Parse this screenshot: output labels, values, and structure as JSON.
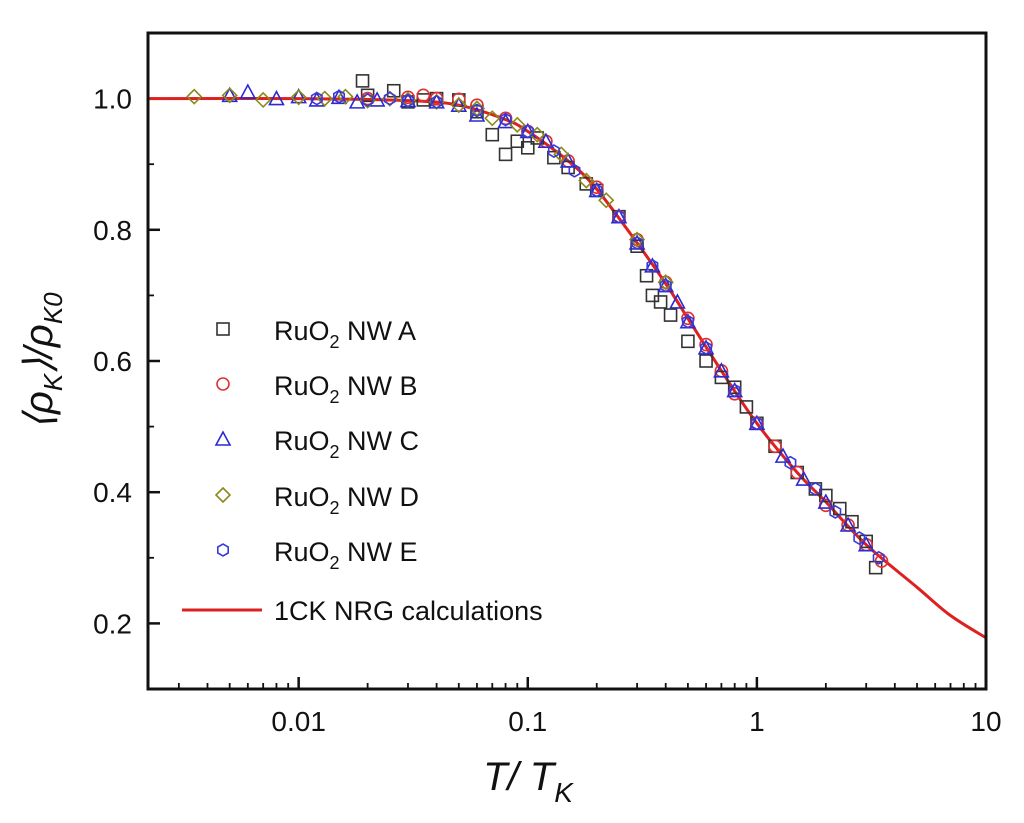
{
  "chart_data": {
    "type": "scatter",
    "xscale": "log",
    "xlim": [
      0.0022,
      10
    ],
    "ylim": [
      0.1,
      1.1
    ],
    "xticks": [
      0.01,
      0.1,
      1,
      10
    ],
    "xtick_labels": [
      "0.01",
      "0.1",
      "1",
      "10"
    ],
    "yticks": [
      0.2,
      0.4,
      0.6,
      0.8,
      1.0
    ],
    "ytick_labels": [
      "0.2",
      "0.4",
      "0.6",
      "0.8",
      "1.0"
    ],
    "xlabel": {
      "main": "T/ T",
      "sub": "K"
    },
    "ylabel": {
      "lead": "⟨ρ",
      "sub1": "K",
      "mid": "⟩/ρ",
      "sub2": "K0"
    },
    "legend_position": "left-center",
    "colors": {
      "A": "#333333",
      "B": "#e03030",
      "C": "#2a2ad0",
      "D": "#8a8a1a",
      "E": "#3a3ad8",
      "fit": "#dd2020"
    },
    "series": [
      {
        "key": "A",
        "name_main": "RuO",
        "name_sub": "2",
        "name_rest": " NW A",
        "marker": "square",
        "points": [
          [
            0.019,
            1.027
          ],
          [
            0.02,
            1.005
          ],
          [
            0.026,
            1.012
          ],
          [
            0.03,
            0.995
          ],
          [
            0.035,
            0.998
          ],
          [
            0.04,
            1.0
          ],
          [
            0.05,
            0.998
          ],
          [
            0.06,
            0.98
          ],
          [
            0.07,
            0.945
          ],
          [
            0.08,
            0.915
          ],
          [
            0.09,
            0.935
          ],
          [
            0.1,
            0.925
          ],
          [
            0.11,
            0.94
          ],
          [
            0.13,
            0.91
          ],
          [
            0.15,
            0.895
          ],
          [
            0.18,
            0.87
          ],
          [
            0.2,
            0.86
          ],
          [
            0.25,
            0.82
          ],
          [
            0.3,
            0.775
          ],
          [
            0.33,
            0.73
          ],
          [
            0.35,
            0.7
          ],
          [
            0.38,
            0.69
          ],
          [
            0.42,
            0.67
          ],
          [
            0.5,
            0.63
          ],
          [
            0.6,
            0.6
          ],
          [
            0.7,
            0.575
          ],
          [
            0.8,
            0.56
          ],
          [
            0.9,
            0.53
          ],
          [
            1.0,
            0.505
          ],
          [
            1.2,
            0.47
          ],
          [
            1.5,
            0.43
          ],
          [
            1.8,
            0.405
          ],
          [
            2.0,
            0.395
          ],
          [
            2.3,
            0.375
          ],
          [
            2.6,
            0.355
          ],
          [
            3.0,
            0.325
          ],
          [
            3.3,
            0.285
          ]
        ]
      },
      {
        "key": "B",
        "name_main": "RuO",
        "name_sub": "2",
        "name_rest": " NW B",
        "marker": "circle",
        "points": [
          [
            0.02,
            1.0
          ],
          [
            0.03,
            1.002
          ],
          [
            0.035,
            1.005
          ],
          [
            0.04,
            1.0
          ],
          [
            0.05,
            0.999
          ],
          [
            0.06,
            0.99
          ],
          [
            0.08,
            0.97
          ],
          [
            0.1,
            0.95
          ],
          [
            0.12,
            0.935
          ],
          [
            0.15,
            0.905
          ],
          [
            0.2,
            0.865
          ],
          [
            0.25,
            0.82
          ],
          [
            0.3,
            0.785
          ],
          [
            0.4,
            0.72
          ],
          [
            0.5,
            0.665
          ],
          [
            0.6,
            0.625
          ],
          [
            0.7,
            0.585
          ],
          [
            0.8,
            0.55
          ],
          [
            1.0,
            0.505
          ],
          [
            1.2,
            0.47
          ],
          [
            1.5,
            0.43
          ],
          [
            2.0,
            0.38
          ],
          [
            2.5,
            0.35
          ],
          [
            3.0,
            0.32
          ],
          [
            3.5,
            0.295
          ]
        ]
      },
      {
        "key": "C",
        "name_main": "RuO",
        "name_sub": "2",
        "name_rest": " NW C",
        "marker": "triangle",
        "points": [
          [
            0.005,
            1.005
          ],
          [
            0.006,
            1.01
          ],
          [
            0.008,
            1.0
          ],
          [
            0.01,
            1.003
          ],
          [
            0.012,
            0.998
          ],
          [
            0.015,
            1.002
          ],
          [
            0.018,
            0.995
          ],
          [
            0.022,
            0.998
          ],
          [
            0.03,
            0.997
          ],
          [
            0.04,
            0.995
          ],
          [
            0.05,
            0.99
          ],
          [
            0.06,
            0.975
          ],
          [
            0.08,
            0.965
          ],
          [
            0.1,
            0.95
          ],
          [
            0.12,
            0.935
          ],
          [
            0.15,
            0.905
          ],
          [
            0.2,
            0.86
          ],
          [
            0.25,
            0.82
          ],
          [
            0.3,
            0.78
          ],
          [
            0.35,
            0.745
          ],
          [
            0.4,
            0.715
          ],
          [
            0.45,
            0.69
          ],
          [
            0.5,
            0.66
          ],
          [
            0.6,
            0.62
          ],
          [
            0.7,
            0.585
          ],
          [
            0.8,
            0.555
          ],
          [
            1.0,
            0.505
          ],
          [
            1.3,
            0.455
          ],
          [
            1.6,
            0.42
          ],
          [
            2.0,
            0.385
          ],
          [
            2.5,
            0.35
          ],
          [
            3.0,
            0.32
          ]
        ]
      },
      {
        "key": "D",
        "name_main": "RuO",
        "name_sub": "2",
        "name_rest": " NW D",
        "marker": "diamond",
        "points": [
          [
            0.0035,
            1.003
          ],
          [
            0.005,
            1.005
          ],
          [
            0.007,
            0.998
          ],
          [
            0.01,
            1.002
          ],
          [
            0.013,
            1.0
          ],
          [
            0.016,
            1.003
          ],
          [
            0.02,
            0.997
          ],
          [
            0.025,
            1.0
          ],
          [
            0.03,
            0.998
          ],
          [
            0.04,
            0.995
          ],
          [
            0.05,
            0.99
          ],
          [
            0.06,
            0.985
          ],
          [
            0.07,
            0.97
          ],
          [
            0.09,
            0.96
          ],
          [
            0.11,
            0.945
          ],
          [
            0.14,
            0.915
          ],
          [
            0.18,
            0.875
          ],
          [
            0.22,
            0.845
          ],
          [
            0.3,
            0.785
          ],
          [
            0.4,
            0.72
          ]
        ]
      },
      {
        "key": "E",
        "name_main": "RuO",
        "name_sub": "2",
        "name_rest": " NW E",
        "marker": "hexagon",
        "points": [
          [
            0.012,
            1.0
          ],
          [
            0.015,
            1.003
          ],
          [
            0.02,
            0.998
          ],
          [
            0.025,
            1.0
          ],
          [
            0.03,
            0.997
          ],
          [
            0.04,
            0.995
          ],
          [
            0.06,
            0.982
          ],
          [
            0.08,
            0.968
          ],
          [
            0.1,
            0.95
          ],
          [
            0.13,
            0.92
          ],
          [
            0.16,
            0.89
          ],
          [
            0.2,
            0.86
          ],
          [
            0.25,
            0.82
          ],
          [
            0.3,
            0.78
          ],
          [
            0.35,
            0.745
          ],
          [
            0.4,
            0.715
          ],
          [
            0.5,
            0.66
          ],
          [
            0.6,
            0.62
          ],
          [
            0.8,
            0.555
          ],
          [
            1.0,
            0.505
          ],
          [
            1.4,
            0.445
          ],
          [
            1.8,
            0.405
          ],
          [
            2.2,
            0.37
          ],
          [
            2.8,
            0.33
          ],
          [
            3.4,
            0.3
          ]
        ]
      }
    ],
    "fit": {
      "name": "1CK NRG calculations",
      "points": [
        [
          0.0022,
          1.0
        ],
        [
          0.01,
          1.0
        ],
        [
          0.03,
          0.997
        ],
        [
          0.05,
          0.99
        ],
        [
          0.08,
          0.968
        ],
        [
          0.1,
          0.95
        ],
        [
          0.15,
          0.905
        ],
        [
          0.2,
          0.862
        ],
        [
          0.3,
          0.78
        ],
        [
          0.4,
          0.718
        ],
        [
          0.5,
          0.665
        ],
        [
          0.7,
          0.585
        ],
        [
          1.0,
          0.505
        ],
        [
          1.5,
          0.43
        ],
        [
          2.0,
          0.385
        ],
        [
          3.0,
          0.32
        ],
        [
          5.0,
          0.255
        ],
        [
          7.0,
          0.212
        ],
        [
          10.0,
          0.178
        ]
      ]
    }
  }
}
